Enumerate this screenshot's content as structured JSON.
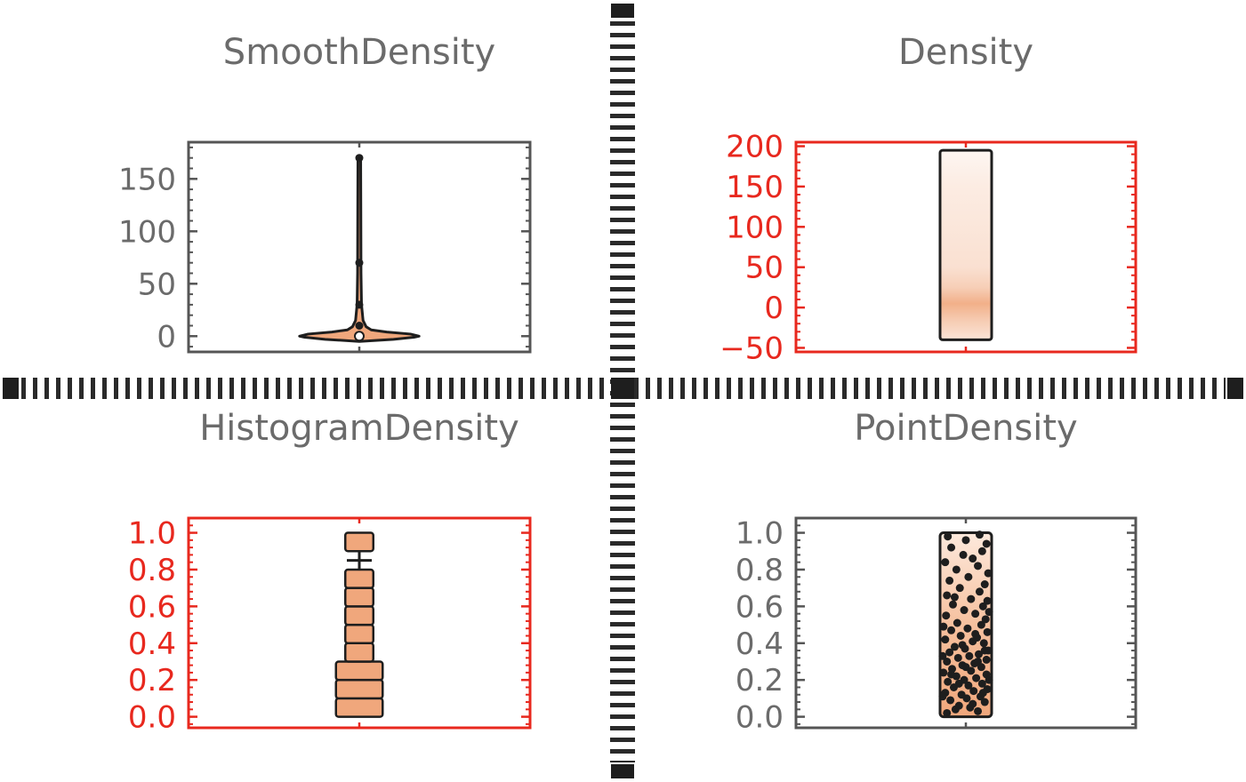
{
  "colors": {
    "gray_frame": "#555555",
    "gray_text": "#6b6b6b",
    "red": "#e8281e",
    "fill_orange": "#f0a77c",
    "fill_light": "#fbe5d6",
    "dark": "#1e1e1e",
    "divider": "#2a2a2a"
  },
  "chart_data": [
    {
      "id": "smooth",
      "type": "violin",
      "title": "SmoothDensity",
      "frame_color": "gray",
      "ylim": [
        -15,
        185
      ],
      "yticks": [
        0,
        50,
        100,
        150
      ],
      "ytick_labels": [
        "0",
        "50",
        "100",
        "150"
      ],
      "whisker": [
        0,
        170
      ],
      "median_dot": 0,
      "dots": [
        170,
        70,
        30,
        10
      ],
      "profile": [
        {
          "y": -5,
          "w": 0.0
        },
        {
          "y": -3,
          "w": 0.2
        },
        {
          "y": -1,
          "w": 0.32
        },
        {
          "y": 0,
          "w": 0.35
        },
        {
          "y": 2,
          "w": 0.3
        },
        {
          "y": 4,
          "w": 0.16
        },
        {
          "y": 6,
          "w": 0.07
        },
        {
          "y": 9,
          "w": 0.04
        },
        {
          "y": 15,
          "w": 0.022
        },
        {
          "y": 30,
          "w": 0.013
        },
        {
          "y": 60,
          "w": 0.01
        },
        {
          "y": 120,
          "w": 0.009
        },
        {
          "y": 170,
          "w": 0.008
        }
      ]
    },
    {
      "id": "density",
      "type": "density_strip",
      "title": "Density",
      "frame_color": "red",
      "ylim": [
        -55,
        205
      ],
      "yticks": [
        -50,
        0,
        50,
        100,
        150,
        200
      ],
      "ytick_labels": [
        "−50",
        "0",
        "50",
        "100",
        "150",
        "200"
      ],
      "range": [
        -40,
        195
      ],
      "gradient": [
        {
          "y": 195,
          "intensity": 0.1
        },
        {
          "y": 150,
          "intensity": 0.22
        },
        {
          "y": 100,
          "intensity": 0.28
        },
        {
          "y": 50,
          "intensity": 0.35
        },
        {
          "y": 25,
          "intensity": 0.55
        },
        {
          "y": 5,
          "intensity": 0.9
        },
        {
          "y": -15,
          "intensity": 0.6
        },
        {
          "y": -40,
          "intensity": 0.3
        }
      ]
    },
    {
      "id": "histogram",
      "type": "histogram_box",
      "title": "HistogramDensity",
      "frame_color": "red",
      "ylim": [
        -0.06,
        1.08
      ],
      "yticks": [
        0.0,
        0.2,
        0.4,
        0.6,
        0.8,
        1.0
      ],
      "ytick_labels": [
        "0.0",
        "0.2",
        "0.4",
        "0.6",
        "0.8",
        "1.0"
      ],
      "bins": [
        {
          "y0": 0.0,
          "y1": 0.1,
          "w": 0.5
        },
        {
          "y0": 0.1,
          "y1": 0.2,
          "w": 0.5
        },
        {
          "y0": 0.2,
          "y1": 0.3,
          "w": 0.5
        },
        {
          "y0": 0.3,
          "y1": 0.4,
          "w": 0.3
        },
        {
          "y0": 0.4,
          "y1": 0.5,
          "w": 0.3
        },
        {
          "y0": 0.5,
          "y1": 0.6,
          "w": 0.3
        },
        {
          "y0": 0.6,
          "y1": 0.7,
          "w": 0.3
        },
        {
          "y0": 0.7,
          "y1": 0.8,
          "w": 0.3
        },
        {
          "y0": 0.9,
          "y1": 1.0,
          "w": 0.3
        }
      ],
      "gap": [
        0.8,
        0.9
      ]
    },
    {
      "id": "point",
      "type": "point_density",
      "title": "PointDensity",
      "frame_color": "gray",
      "ylim": [
        -0.06,
        1.08
      ],
      "yticks": [
        0.0,
        0.2,
        0.4,
        0.6,
        0.8,
        1.0
      ],
      "ytick_labels": [
        "0.0",
        "0.2",
        "0.4",
        "0.6",
        "0.8",
        "1.0"
      ],
      "range": [
        0.0,
        1.0
      ],
      "points": [
        [
          -0.22,
          0.02
        ],
        [
          0.14,
          0.03
        ],
        [
          0.05,
          0.05
        ],
        [
          -0.08,
          0.06
        ],
        [
          0.22,
          0.08
        ],
        [
          -0.18,
          0.09
        ],
        [
          0.01,
          0.1
        ],
        [
          0.17,
          0.11
        ],
        [
          -0.05,
          0.12
        ],
        [
          -0.24,
          0.13
        ],
        [
          0.09,
          0.14
        ],
        [
          0.25,
          0.15
        ],
        [
          -0.14,
          0.16
        ],
        [
          0.03,
          0.17
        ],
        [
          0.19,
          0.18
        ],
        [
          -0.21,
          0.19
        ],
        [
          -0.02,
          0.2
        ],
        [
          0.12,
          0.21
        ],
        [
          -0.11,
          0.22
        ],
        [
          0.24,
          0.23
        ],
        [
          -0.26,
          0.24
        ],
        [
          0.06,
          0.25
        ],
        [
          -0.16,
          0.26
        ],
        [
          0.18,
          0.27
        ],
        [
          -0.04,
          0.28
        ],
        [
          0.1,
          0.29
        ],
        [
          -0.22,
          0.3
        ],
        [
          0.24,
          0.31
        ],
        [
          -0.09,
          0.32
        ],
        [
          0.04,
          0.33
        ],
        [
          0.15,
          0.34
        ],
        [
          -0.19,
          0.35
        ],
        [
          0.26,
          0.36
        ],
        [
          -0.01,
          0.37
        ],
        [
          -0.13,
          0.38
        ],
        [
          0.21,
          0.4
        ],
        [
          0.08,
          0.41
        ],
        [
          -0.24,
          0.42
        ],
        [
          0.13,
          0.43
        ],
        [
          -0.06,
          0.44
        ],
        [
          0.25,
          0.46
        ],
        [
          -0.17,
          0.47
        ],
        [
          0.02,
          0.48
        ],
        [
          0.18,
          0.5
        ],
        [
          -0.1,
          0.51
        ],
        [
          0.23,
          0.53
        ],
        [
          -0.23,
          0.55
        ],
        [
          0.11,
          0.56
        ],
        [
          -0.02,
          0.58
        ],
        [
          0.2,
          0.6
        ],
        [
          -0.15,
          0.61
        ],
        [
          0.25,
          0.63
        ],
        [
          0.06,
          0.64
        ],
        [
          -0.22,
          0.66
        ],
        [
          0.16,
          0.68
        ],
        [
          -0.07,
          0.7
        ],
        [
          0.22,
          0.72
        ],
        [
          -0.19,
          0.74
        ],
        [
          0.03,
          0.76
        ],
        [
          0.26,
          0.78
        ],
        [
          -0.11,
          0.8
        ],
        [
          0.14,
          0.82
        ],
        [
          -0.24,
          0.84
        ],
        [
          0.08,
          0.86
        ],
        [
          -0.03,
          0.88
        ],
        [
          0.19,
          0.9
        ],
        [
          -0.17,
          0.92
        ],
        [
          0.24,
          0.94
        ],
        [
          0.0,
          0.96
        ],
        [
          -0.21,
          0.98
        ],
        [
          0.16,
          0.99
        ],
        [
          -0.12,
          0.04
        ],
        [
          0.08,
          0.07
        ],
        [
          -0.27,
          0.11
        ],
        [
          0.2,
          0.13
        ],
        [
          -0.08,
          0.18
        ],
        [
          0.27,
          0.2
        ],
        [
          -0.17,
          0.23
        ],
        [
          0.0,
          0.27
        ],
        [
          0.14,
          0.3
        ],
        [
          -0.27,
          0.33
        ],
        [
          0.22,
          0.36
        ],
        [
          -0.04,
          0.39
        ],
        [
          0.11,
          0.45
        ],
        [
          -0.26,
          0.49
        ],
        [
          0.27,
          0.57
        ],
        [
          -0.13,
          0.65
        ]
      ]
    }
  ]
}
